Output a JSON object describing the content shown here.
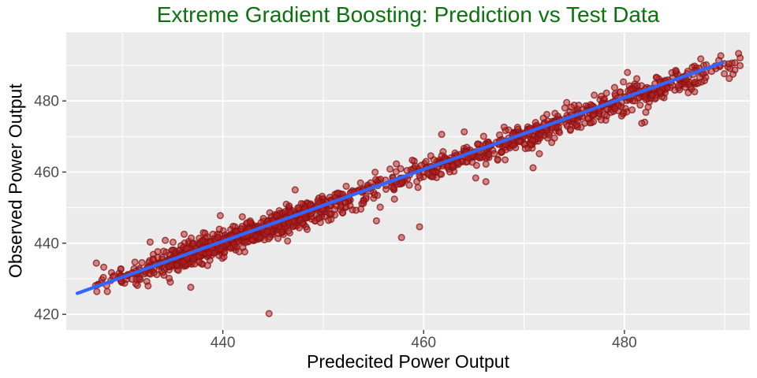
{
  "title": "Extreme Gradient Boosting: Prediction vs Test Data",
  "axes": {
    "x_label": "Predecited Power Output",
    "y_label": "Observed Power Output"
  },
  "style": {
    "title_color": "#0B720D",
    "panel_bg": "#EBEBEB",
    "grid_color": "#FFFFFF",
    "tick_mark_color": "#333333",
    "tick_label_color": "#4D4D4D",
    "point_fill": "#B22222",
    "point_fill_opacity": 0.5,
    "point_stroke": "#8B1212",
    "point_stroke_opacity": 0.75,
    "fit_line_color": "#3366FF"
  },
  "chart_data": {
    "type": "scatter",
    "title": "Extreme Gradient Boosting: Prediction vs Test Data",
    "xlabel": "Predecited Power Output",
    "ylabel": "Observed Power Output",
    "x_ticks": [
      440,
      460,
      480
    ],
    "y_ticks": [
      420,
      440,
      460,
      480
    ],
    "x_minor_ticks": [
      430,
      450,
      470,
      490
    ],
    "y_minor_ticks": [
      430,
      450,
      470,
      490
    ],
    "xlim": [
      424.4,
      492.5
    ],
    "ylim": [
      415.6,
      499.3
    ],
    "grid": "on",
    "legend": "none",
    "relationship": "predictions closely track observations along the identity line y = x with residual scatter of about +/-2 units over the range 427-492",
    "fit_line": {
      "x1": 425.5,
      "y1": 425.9,
      "x2": 489.8,
      "y2": 490.8
    },
    "generator": {
      "seed": 20,
      "n_points": 1400,
      "x_range": [
        427.2,
        491.8
      ],
      "x_clusters": [
        {
          "mean": 437.5,
          "sd": 4.5,
          "weight": 0.28
        },
        {
          "mean": 447.5,
          "sd": 4.5,
          "weight": 0.27
        },
        {
          "mean": 467.0,
          "sd": 6.0,
          "weight": 0.25
        },
        {
          "mean": 481.5,
          "sd": 5.5,
          "weight": 0.2
        }
      ],
      "noise_base_sd": 1.8,
      "noise_wide_sd": 3.4,
      "noise_wide_fraction": 0.07,
      "max_residual": 8
    },
    "outlier_points": [
      [
        444.6,
        420.2
      ],
      [
        427.4,
        434.4
      ],
      [
        455.3,
        446.3
      ],
      [
        457.8,
        441.6
      ],
      [
        459.6,
        444.6
      ],
      [
        466.2,
        457.3
      ],
      [
        470.9,
        461.2
      ],
      [
        436.8,
        427.6
      ],
      [
        447.2,
        455.0
      ],
      [
        461.8,
        470.6
      ],
      [
        480.3,
        488.0
      ]
    ]
  }
}
